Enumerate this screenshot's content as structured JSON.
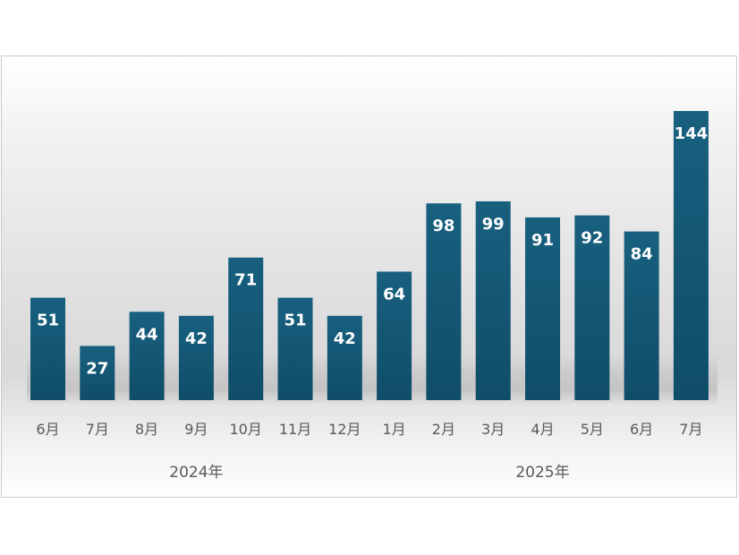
{
  "chart_data": {
    "type": "bar",
    "title": "",
    "xlabel": "",
    "ylabel": "",
    "categories": [
      "6月",
      "7月",
      "8月",
      "9月",
      "10月",
      "11月",
      "12月",
      "1月",
      "2月",
      "3月",
      "4月",
      "5月",
      "6月",
      "7月"
    ],
    "groups": [
      {
        "label": "2024年",
        "categories": [
          "6月",
          "7月",
          "8月",
          "9月",
          "10月",
          "11月",
          "12月"
        ]
      },
      {
        "label": "2025年",
        "categories": [
          "1月",
          "2月",
          "3月",
          "4月",
          "5月",
          "6月",
          "7月"
        ]
      }
    ],
    "values": [
      51,
      27,
      44,
      42,
      71,
      51,
      42,
      64,
      98,
      99,
      91,
      92,
      84,
      144
    ],
    "ylim": [
      0,
      144
    ],
    "grid": false,
    "legend": "none",
    "data_labels": true,
    "colors": {
      "bar_top": "#18607f",
      "bar_bottom": "#0f4d69",
      "value_label": "#ffffff",
      "axis_text": "#595959",
      "frame_border": "#c8c8c8"
    }
  }
}
